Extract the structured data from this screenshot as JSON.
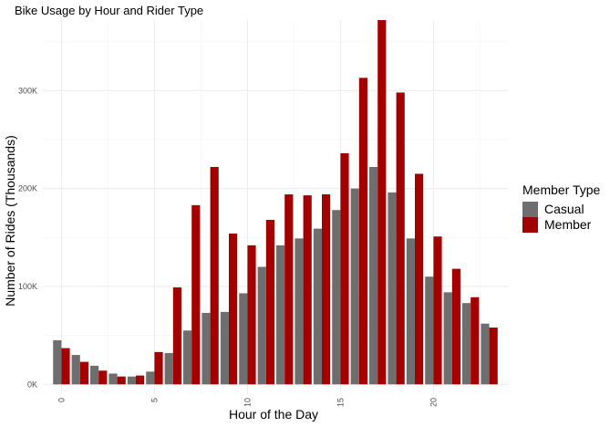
{
  "chart_data": {
    "type": "bar",
    "title": "Bike Usage by Hour and Rider Type",
    "xlabel": "Hour of the Day",
    "ylabel": "Number of Rides (Thousands)",
    "xlim": [
      -1,
      24
    ],
    "ylim": [
      -10000,
      372000
    ],
    "x_ticks": [
      0,
      5,
      10,
      15,
      20
    ],
    "y_ticks": [
      {
        "value": 0,
        "label": "0K"
      },
      {
        "value": 100000,
        "label": "100K"
      },
      {
        "value": 200000,
        "label": "200K"
      },
      {
        "value": 300000,
        "label": "300K"
      }
    ],
    "grid": true,
    "legend": {
      "title": "Member Type",
      "placement": "right"
    },
    "categories": [
      0,
      1,
      2,
      3,
      4,
      5,
      6,
      7,
      8,
      9,
      10,
      11,
      12,
      13,
      14,
      15,
      16,
      17,
      18,
      19,
      20,
      21,
      22,
      23
    ],
    "series": [
      {
        "name": "Casual",
        "color": "#6e6e6e",
        "values": [
          45000,
          30000,
          19000,
          11000,
          8000,
          13000,
          32000,
          55000,
          73000,
          74000,
          93000,
          120000,
          142000,
          149000,
          159000,
          178000,
          200000,
          222000,
          196000,
          149000,
          110000,
          94000,
          83000,
          62000
        ]
      },
      {
        "name": "Member",
        "color": "#a30000",
        "values": [
          37000,
          23000,
          14000,
          8000,
          9000,
          33000,
          99000,
          183000,
          222000,
          154000,
          142000,
          168000,
          194000,
          193000,
          194000,
          236000,
          313000,
          372000,
          298000,
          215000,
          151000,
          118000,
          89000,
          58000
        ]
      }
    ]
  }
}
